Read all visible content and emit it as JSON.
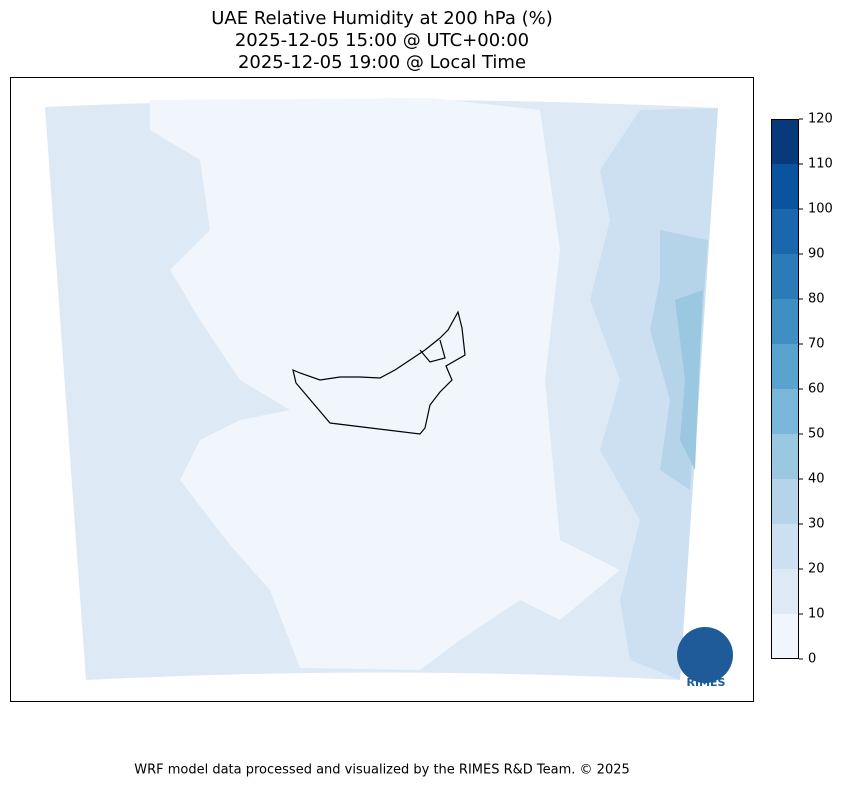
{
  "title": [
    "UAE Relative Humidity at 200 hPa (%)",
    "2025-12-05 15:00 @ UTC+00:00",
    "2025-12-05 19:00 @ Local Time"
  ],
  "colorbar": {
    "lim": [
      0,
      120
    ],
    "ticks": [
      0,
      10,
      20,
      30,
      40,
      50,
      60,
      70,
      80,
      90,
      100,
      110,
      120
    ],
    "colors": [
      "#f0f6fc",
      "#dde9f5",
      "#cde0f1",
      "#b6d4e9",
      "#9ac8e0",
      "#7ab6d9",
      "#5ba3cf",
      "#3f8fc5",
      "#2c7bb9",
      "#1a67ad",
      "#0a539e",
      "#08397a"
    ]
  },
  "logo": "RIMES",
  "footer": "WRF model data processed and visualized by the RIMES R&D Team. © 2025"
}
